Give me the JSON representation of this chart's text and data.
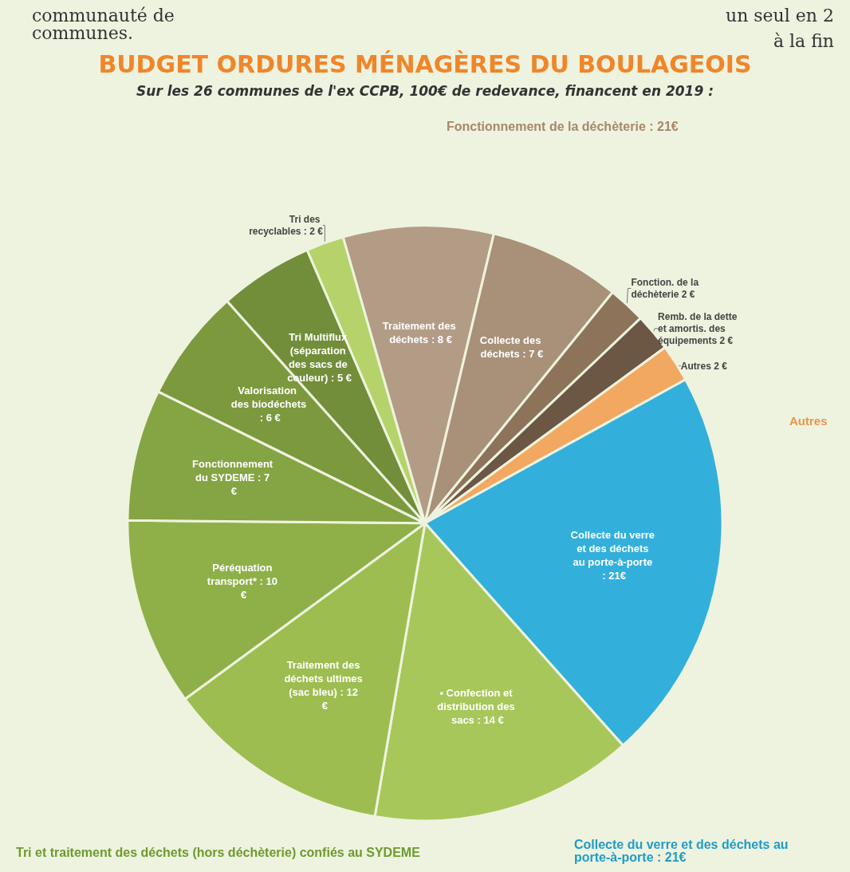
{
  "chart_data": {
    "type": "pie",
    "title": "BUDGET ORDURES MÉNAGÈRES DU BOULAGEOIS",
    "subtitle": "Sur les 26 communes de l'ex CCPB, 100€ de redevance, financent en 2019 :",
    "categories": [
      "Traitement des déchets : 8 €",
      "Collecte des déchets : 7 €",
      "Fonction. de la déchèterie 2 €",
      "Remb. de la dette et amortis. des équipements 2 €",
      "Autres 2 €",
      "Collecte du verre et des déchets au porte-à-porte : 21€",
      "• Confection et distribution des sacs : 14 €",
      "Traitement des déchets ultimes (sac bleu) : 12 €",
      "Péréquation transport* : 10 €",
      "Fonctionnement du SYDEME : 7 €",
      "Valorisation des biodéchets : 6 €",
      "Tri Multiflux (séparation des sacs de couleur) : 5 €",
      "Tri des recyclables : 2 €"
    ],
    "values": [
      8,
      7,
      2,
      2,
      2,
      21,
      14,
      12,
      10,
      7,
      6,
      5,
      2
    ],
    "colors": [
      "#b39c86",
      "#a89079",
      "#8c735a",
      "#6b5744",
      "#f2a860",
      "#33afdc",
      "#a8c75a",
      "#9dbd50",
      "#8fb048",
      "#85a443",
      "#7c993e",
      "#728e3a",
      "#b5d36a"
    ],
    "annotations": [
      "communauté de communes.",
      "un seul en 2",
      "à la fin",
      "Fonctionnement de la déchèterie : 21€",
      "Autres",
      "Collecte du verre et des déchets au porte-à-porte : 21€",
      "Tri et traitement des déchets (hors déchèterie) confiés au SYDEME"
    ],
    "legend": false
  }
}
